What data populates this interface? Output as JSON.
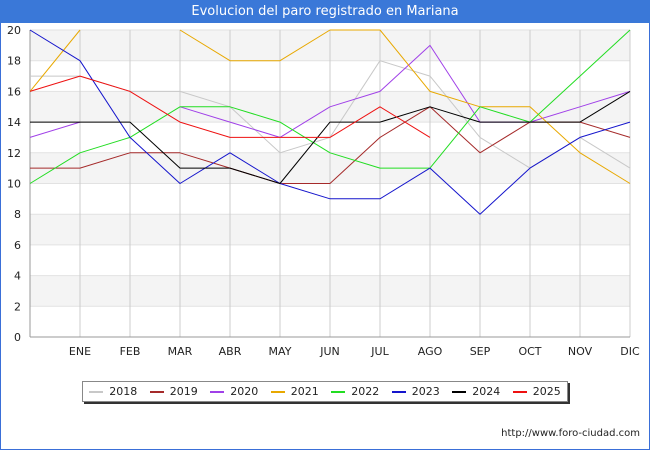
{
  "title": "Evolucion del paro registrado en Mariana",
  "source": "http://www.foro-ciudad.com",
  "chart_data": {
    "type": "line",
    "categories": [
      "",
      "ENE",
      "FEB",
      "MAR",
      "ABR",
      "MAY",
      "JUN",
      "JUL",
      "AGO",
      "SEP",
      "OCT",
      "NOV",
      "DIC"
    ],
    "ylim": [
      0,
      20
    ],
    "yticks": [
      0,
      2,
      4,
      6,
      8,
      10,
      12,
      14,
      16,
      18,
      20
    ],
    "grid": true,
    "legend_position": "bottom",
    "series": [
      {
        "name": "2018",
        "color": "#c8c8c8",
        "values": [
          17,
          17,
          16,
          16,
          15,
          12,
          13,
          18,
          17,
          13,
          11,
          13,
          11
        ]
      },
      {
        "name": "2019",
        "color": "#a52a2a",
        "values": [
          11,
          11,
          12,
          12,
          11,
          10,
          10,
          13,
          15,
          12,
          14,
          14,
          13
        ]
      },
      {
        "name": "2020",
        "color": "#a040e8",
        "values": [
          13,
          14,
          null,
          15,
          14,
          13,
          15,
          16,
          19,
          14,
          14,
          15,
          16
        ]
      },
      {
        "name": "2021",
        "color": "#e8a800",
        "values": [
          16,
          20,
          null,
          20,
          18,
          18,
          20,
          20,
          16,
          15,
          15,
          12,
          10
        ]
      },
      {
        "name": "2022",
        "color": "#22dd22",
        "values": [
          10,
          12,
          13,
          15,
          15,
          14,
          12,
          11,
          11,
          15,
          14,
          17,
          20
        ]
      },
      {
        "name": "2023",
        "color": "#1515cc",
        "values": [
          20,
          18,
          13,
          10,
          12,
          10,
          9,
          9,
          11,
          8,
          11,
          13,
          14
        ]
      },
      {
        "name": "2024",
        "color": "#000000",
        "values": [
          14,
          14,
          14,
          11,
          11,
          10,
          14,
          14,
          15,
          14,
          14,
          14,
          16
        ]
      },
      {
        "name": "2025",
        "color": "#ee1111",
        "values": [
          16,
          17,
          16,
          14,
          13,
          13,
          13,
          15,
          13,
          null,
          null,
          null,
          null
        ]
      }
    ]
  }
}
